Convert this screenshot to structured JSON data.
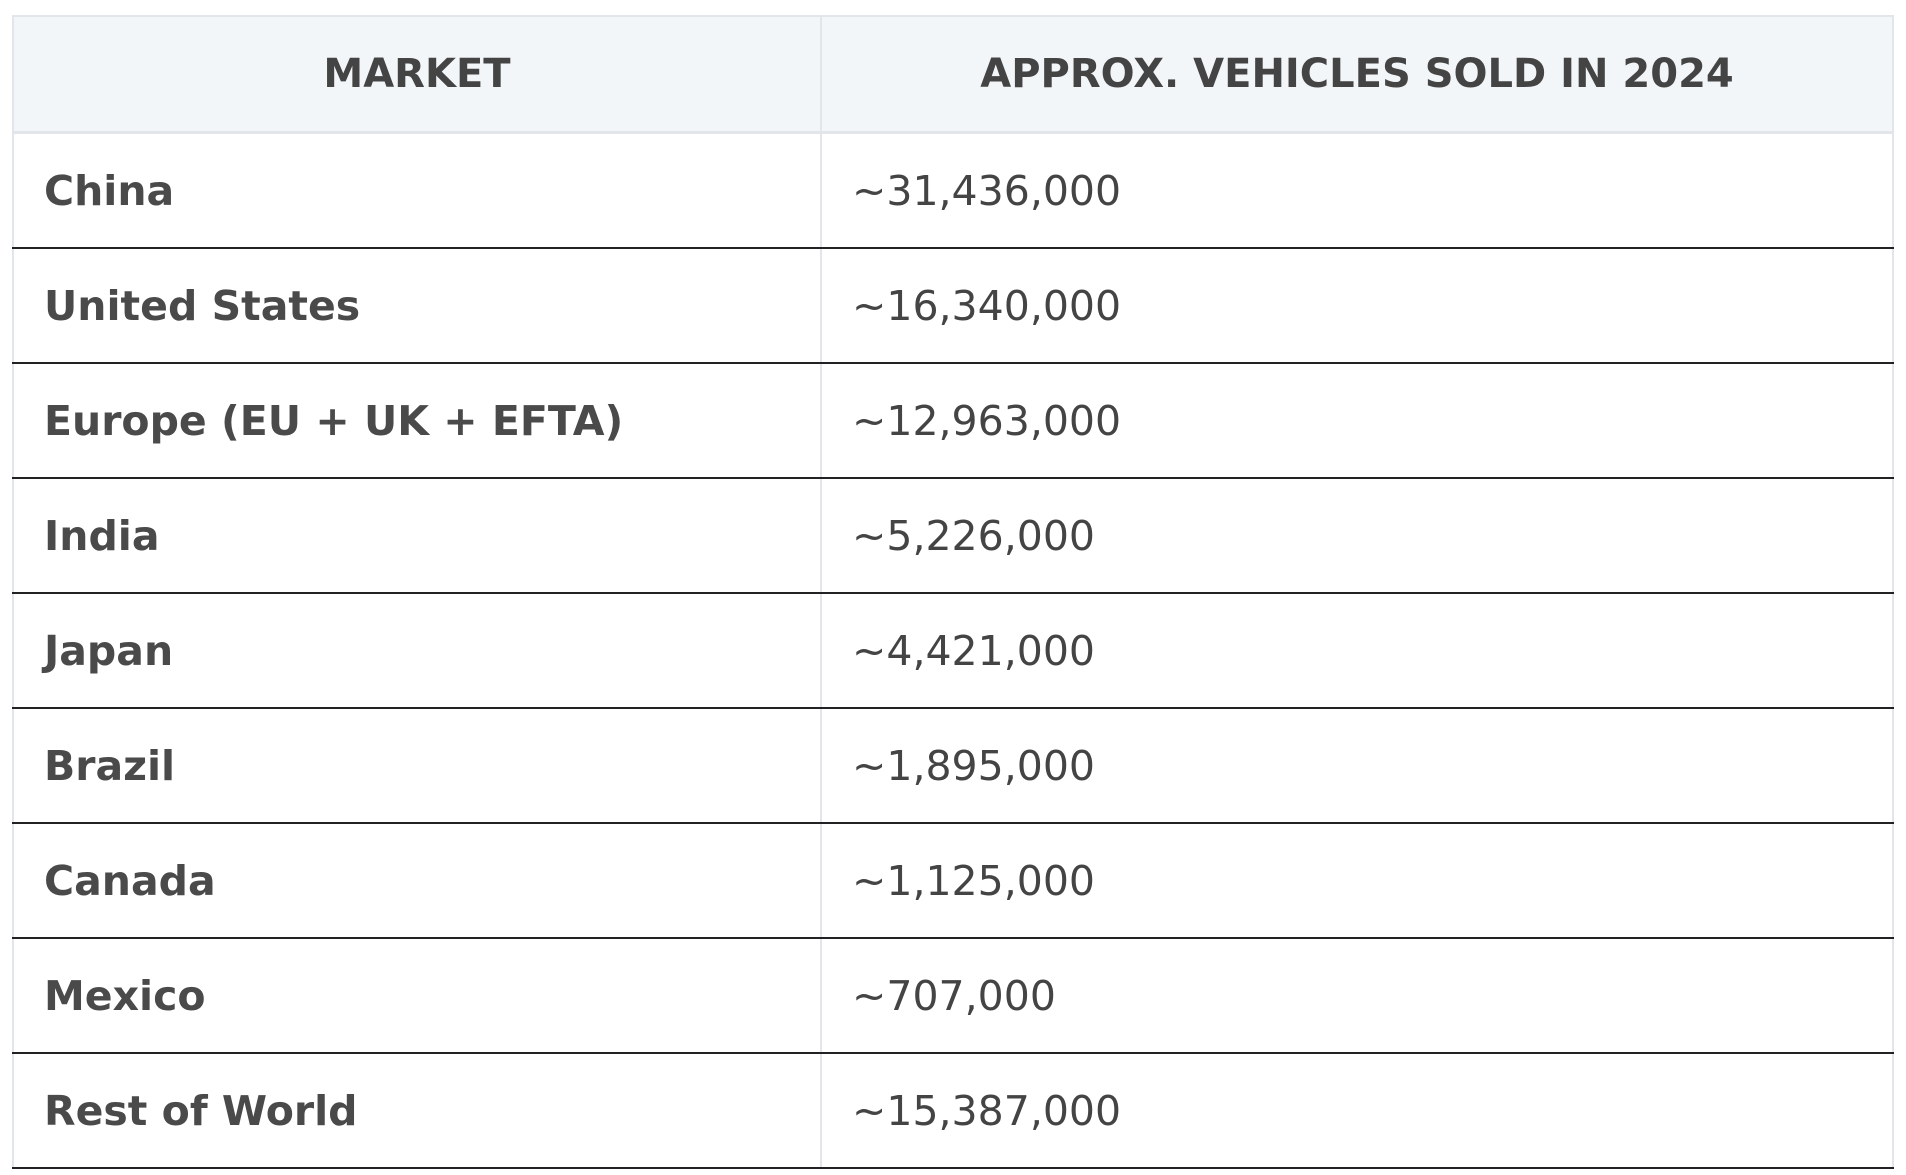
{
  "table": {
    "header": [
      "MARKET",
      "APPROX. VEHICLES SOLD IN 2024"
    ],
    "rows": [
      [
        "China",
        "~31,436,000"
      ],
      [
        "United States",
        "~16,340,000"
      ],
      [
        "Europe (EU + UK + EFTA)",
        "~12,963,000"
      ],
      [
        "India",
        "~5,226,000"
      ],
      [
        "Japan",
        "~4,421,000"
      ],
      [
        "Brazil",
        "~1,895,000"
      ],
      [
        "Canada",
        "~1,125,000"
      ],
      [
        "Mexico",
        "~707,000"
      ],
      [
        "Rest of World",
        "~15,387,000"
      ]
    ]
  }
}
